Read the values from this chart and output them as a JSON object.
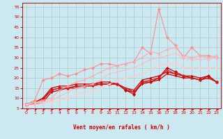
{
  "background_color": "#cce8f0",
  "grid_color": "#aacccc",
  "xlabel": "Vent moyen/en rafales ( km/h )",
  "xlim": [
    -0.5,
    23.5
  ],
  "ylim": [
    5,
    57
  ],
  "yticks": [
    5,
    10,
    15,
    20,
    25,
    30,
    35,
    40,
    45,
    50,
    55
  ],
  "xticks": [
    0,
    1,
    2,
    3,
    4,
    5,
    6,
    7,
    8,
    9,
    10,
    11,
    12,
    13,
    14,
    15,
    16,
    17,
    18,
    19,
    20,
    21,
    22,
    23
  ],
  "lines": [
    {
      "x": [
        0,
        1,
        2,
        3,
        4,
        5,
        6,
        7,
        8,
        9,
        10,
        11,
        12,
        13,
        14,
        15,
        16,
        17,
        18,
        19,
        20,
        21,
        22,
        23
      ],
      "y": [
        7,
        8,
        10,
        14,
        15,
        15,
        16,
        16,
        17,
        17,
        17,
        17,
        14,
        12,
        18,
        18,
        20,
        25,
        23,
        21,
        20,
        19,
        21,
        18
      ],
      "color": "#cc0000",
      "marker": "D",
      "markersize": 2.0,
      "linewidth": 0.9,
      "alpha": 1.0
    },
    {
      "x": [
        0,
        1,
        2,
        3,
        4,
        5,
        6,
        7,
        8,
        9,
        10,
        11,
        12,
        13,
        14,
        15,
        16,
        17,
        18,
        19,
        20,
        21,
        22,
        23
      ],
      "y": [
        7,
        8,
        10,
        15,
        16,
        16,
        17,
        17,
        17,
        18,
        18,
        17,
        15,
        14,
        19,
        20,
        21,
        23,
        22,
        21,
        21,
        20,
        21,
        18
      ],
      "color": "#cc0000",
      "marker": "^",
      "markersize": 2.0,
      "linewidth": 0.9,
      "alpha": 1.0
    },
    {
      "x": [
        0,
        1,
        2,
        3,
        4,
        5,
        6,
        7,
        8,
        9,
        10,
        11,
        12,
        13,
        14,
        15,
        16,
        17,
        18,
        19,
        20,
        21,
        22,
        23
      ],
      "y": [
        7,
        7,
        8,
        13,
        14,
        15,
        15,
        16,
        16,
        17,
        17,
        17,
        14,
        13,
        17,
        18,
        19,
        22,
        21,
        20,
        20,
        19,
        20,
        18
      ],
      "color": "#cc0000",
      "marker": "v",
      "markersize": 2.0,
      "linewidth": 0.9,
      "alpha": 1.0
    },
    {
      "x": [
        0,
        1,
        2,
        3,
        4,
        5,
        6,
        7,
        8,
        9,
        10,
        11,
        12,
        13,
        14,
        15,
        16,
        17,
        18,
        19,
        20,
        21,
        22,
        23
      ],
      "y": [
        7,
        8,
        9,
        14,
        15,
        15,
        16,
        16,
        17,
        17,
        17,
        17,
        15,
        13,
        18,
        19,
        20,
        24,
        22,
        21,
        20,
        19,
        20,
        18
      ],
      "color": "#cc2222",
      "marker": "x",
      "markersize": 2.5,
      "linewidth": 0.9,
      "alpha": 1.0
    },
    {
      "x": [
        0,
        1,
        2,
        3,
        4,
        5,
        6,
        7,
        8,
        9,
        10,
        11,
        12,
        13,
        14,
        15,
        16,
        17,
        18,
        19,
        20,
        21,
        22,
        23
      ],
      "y": [
        7,
        9,
        19,
        20,
        22,
        21,
        22,
        24,
        25,
        27,
        27,
        26,
        27,
        28,
        35,
        32,
        54,
        40,
        36,
        30,
        35,
        31,
        31,
        30
      ],
      "color": "#ff8888",
      "marker": "D",
      "markersize": 2.0,
      "linewidth": 0.9,
      "alpha": 0.85
    },
    {
      "x": [
        0,
        1,
        2,
        3,
        4,
        5,
        6,
        7,
        8,
        9,
        10,
        11,
        12,
        13,
        14,
        15,
        16,
        17,
        18,
        19,
        20,
        21,
        22,
        23
      ],
      "y": [
        7,
        8,
        9,
        10,
        14,
        16,
        18,
        19,
        21,
        23,
        25,
        26,
        27,
        28,
        30,
        33,
        32,
        34,
        35,
        31,
        30,
        31,
        30,
        31
      ],
      "color": "#ffaaaa",
      "marker": "^",
      "markersize": 2.0,
      "linewidth": 0.9,
      "alpha": 0.85
    },
    {
      "x": [
        0,
        1,
        2,
        3,
        4,
        5,
        6,
        7,
        8,
        9,
        10,
        11,
        12,
        13,
        14,
        15,
        16,
        17,
        18,
        19,
        20,
        21,
        22,
        23
      ],
      "y": [
        7,
        8,
        8,
        9,
        11,
        13,
        15,
        16,
        17,
        19,
        22,
        23,
        24,
        25,
        27,
        29,
        30,
        31,
        32,
        30,
        29,
        29,
        29,
        30
      ],
      "color": "#ffbbbb",
      "marker": "s",
      "markersize": 2.0,
      "linewidth": 0.9,
      "alpha": 0.85
    },
    {
      "x": [
        0,
        1,
        2,
        3,
        4,
        5,
        6,
        7,
        8,
        9,
        10,
        11,
        12,
        13,
        14,
        15,
        16,
        17,
        18,
        19,
        20,
        21,
        22,
        23
      ],
      "y": [
        7,
        7,
        8,
        8,
        9,
        10,
        12,
        13,
        14,
        15,
        17,
        19,
        20,
        21,
        22,
        24,
        26,
        27,
        27,
        25,
        25,
        25,
        25,
        25
      ],
      "color": "#ffcccc",
      "marker": "o",
      "markersize": 2.0,
      "linewidth": 1.0,
      "alpha": 0.85
    }
  ],
  "arrow_angles": [
    45,
    45,
    0,
    0,
    0,
    0,
    0,
    0,
    0,
    0,
    0,
    0,
    0,
    0,
    0,
    45,
    0,
    0,
    0,
    0,
    0,
    0,
    0,
    0
  ]
}
